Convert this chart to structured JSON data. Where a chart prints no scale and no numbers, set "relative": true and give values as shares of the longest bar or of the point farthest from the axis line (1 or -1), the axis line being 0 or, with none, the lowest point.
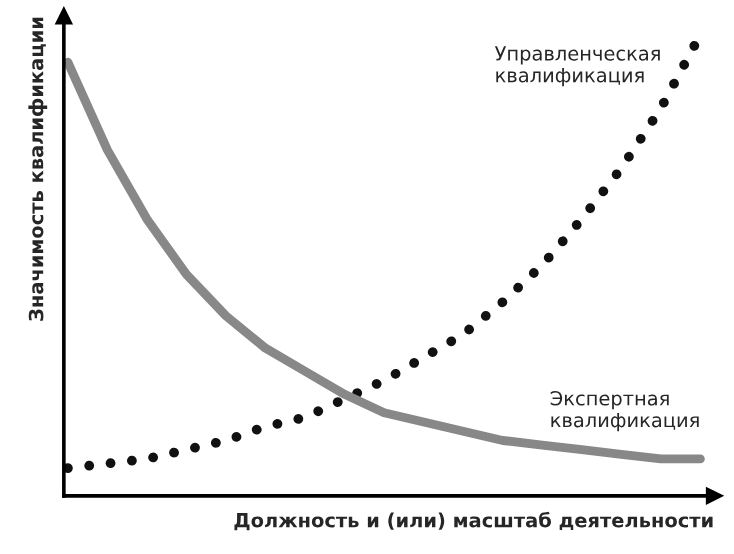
{
  "chart_data": {
    "type": "line",
    "relative": true,
    "xlabel": "Должность и (или) масштаб деятельности",
    "ylabel": "Значимость квалификации",
    "categories": [
      null,
      null,
      null,
      null,
      null,
      null,
      null,
      null,
      null,
      null,
      null,
      null,
      null,
      null,
      null,
      null,
      null
    ],
    "series": [
      {
        "name": "Управленческая\nквалификация",
        "color": "#111111",
        "line_style": "dotted",
        "values": [
          0.06,
          0.07,
          0.08,
          0.1,
          0.12,
          0.15,
          0.17,
          0.21,
          0.25,
          0.3,
          0.35,
          0.42,
          0.5,
          0.6,
          0.71,
          0.84,
          1.0
        ]
      },
      {
        "name": "Экспертная\nквалификация",
        "color": "#888888",
        "line_style": "solid",
        "values": [
          0.94,
          0.75,
          0.6,
          0.48,
          0.39,
          0.32,
          0.27,
          0.22,
          0.18,
          0.16,
          0.14,
          0.12,
          0.11,
          0.1,
          0.09,
          0.08,
          0.08
        ]
      }
    ],
    "legend": false,
    "tick_labels": false
  }
}
